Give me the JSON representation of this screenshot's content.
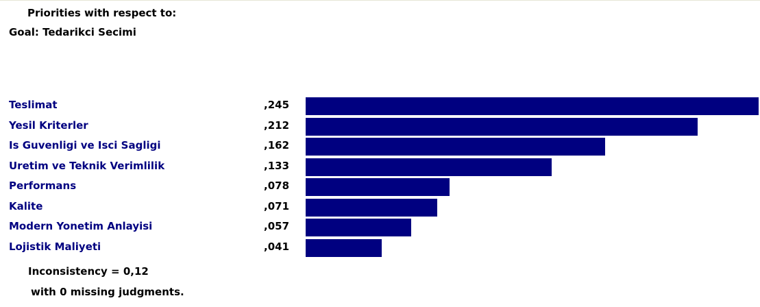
{
  "header": {
    "line1": "Priorities with respect to:",
    "line2": "Goal: Tedarikci Secimi"
  },
  "colors": {
    "label": "#000080",
    "bar": "#000080",
    "text": "#000000",
    "background": "#ffffff"
  },
  "chart_data": {
    "type": "bar",
    "orientation": "horizontal",
    "categories": [
      "Teslimat",
      "Yesil Kriterler",
      "Is Guvenligi ve Isci Sagligi",
      "Uretim ve Teknik Verimlilik",
      "Performans",
      "Kalite",
      "Modern Yonetim Anlayisi",
      "Lojistik Maliyeti"
    ],
    "values": [
      0.245,
      0.212,
      0.162,
      0.133,
      0.078,
      0.071,
      0.057,
      0.041
    ],
    "value_labels": [
      ",245",
      ",212",
      ",162",
      ",133",
      ",078",
      ",071",
      ",057",
      ",041"
    ],
    "title": "",
    "xlabel": "",
    "ylabel": "",
    "xlim": [
      0,
      0.245
    ],
    "grid": false
  },
  "footer": {
    "inconsistency": "Inconsistency = 0,12",
    "missing": "with 0  missing judgments."
  }
}
